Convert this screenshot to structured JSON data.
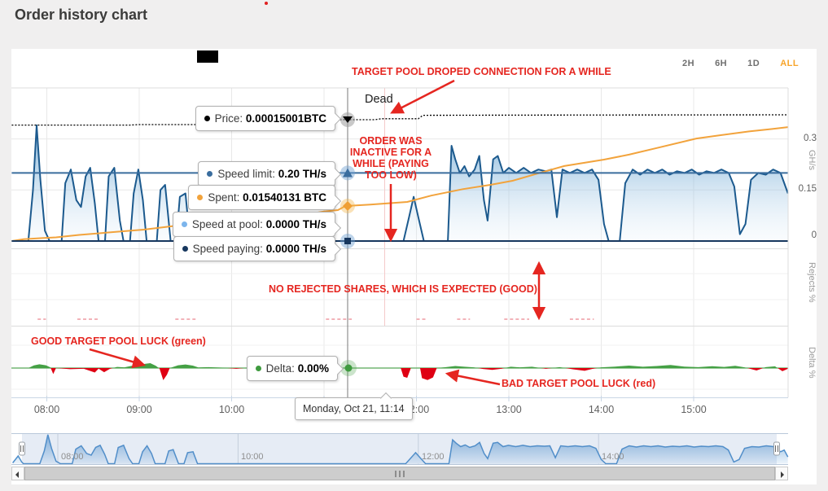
{
  "page": {
    "title": "Order history chart"
  },
  "range_selector": {
    "options": [
      "2H",
      "6H",
      "1D",
      "ALL"
    ],
    "active_index": 3
  },
  "series_tooltips": [
    {
      "id": "price",
      "label": "Price:",
      "value": "0.00015001BTC",
      "color": "#000000"
    },
    {
      "id": "speed_limit",
      "label": "Speed limit:",
      "value": "0.20 TH/s",
      "color": "#3a6d9e"
    },
    {
      "id": "spent",
      "label": "Spent:",
      "value": "0.01540131 BTC",
      "color": "#f2a33c"
    },
    {
      "id": "speed_at_pool",
      "label": "Speed at pool:",
      "value": "0.0000 TH/s",
      "color": "#7cb5ec"
    },
    {
      "id": "speed_paying",
      "label": "Speed paying:",
      "value": "0.0000 TH/s",
      "color": "#17375e"
    },
    {
      "id": "delta",
      "label": "Delta:",
      "value": "0.00%",
      "color": "#3f9b3f"
    }
  ],
  "date_tooltip": "Monday, Oct 21, 11:14",
  "annotations": {
    "dead": "Dead",
    "target_pool_dropped": "TARGET POOL DROPED CONNECTION FOR A WHILE",
    "order_inactive": "ORDER WAS INACTIVE FOR A WHILE (PAYING TOO LOW)",
    "no_rejected": "NO REJECTED SHARES, WHICH IS EXPECTED (GOOD)",
    "good_luck": "GOOD TARGET POOL LUCK (green)",
    "bad_luck": "BAD TARGET POOL LUCK (red)",
    "color": "#e52620"
  },
  "x_axis": {
    "labels": [
      "08:00",
      "09:00",
      "10:00",
      "11:00",
      "12:00",
      "13:00",
      "14:00",
      "15:00"
    ]
  },
  "y_axis": {
    "speed": {
      "title": "GH/s",
      "labels": [
        "0.3",
        "0.15",
        "0"
      ]
    },
    "rejects": {
      "title": "Rejects %"
    },
    "delta": {
      "title": "Delta %"
    }
  },
  "navigator": {
    "labels": [
      "08:00",
      "10:00",
      "12:00",
      "14:00"
    ]
  },
  "chart_data": {
    "type": "area",
    "x_unit": "hour_of_day",
    "x_range": [
      7.62,
      16.02
    ],
    "panes": [
      {
        "name": "speed",
        "ylabel": "GH/s",
        "ylim": [
          0,
          0.45
        ],
        "gridlines": [
          0.15,
          0.3
        ]
      },
      {
        "name": "rejects",
        "ylabel": "Rejects %"
      },
      {
        "name": "delta",
        "ylabel": "Delta %"
      }
    ],
    "crosshair": {
      "label": "Monday, Oct 21, 11:14",
      "t": 11.233,
      "values": {
        "price_btc": 0.00015001,
        "speed_limit_ths": 0.2,
        "spent_btc": 0.01540131,
        "speed_at_pool_ths": 0.0,
        "speed_paying_ths": 0.0,
        "delta_pct": 0.0
      }
    },
    "series": [
      {
        "name": "Price",
        "unit": "BTC",
        "color": "#000000",
        "style": "dashed",
        "points": [
          [
            7.62,
            0.0001478
          ],
          [
            8.9,
            0.0001478
          ],
          [
            9.0,
            0.000148
          ],
          [
            9.9,
            0.000148
          ],
          [
            10.0,
            0.0001482
          ],
          [
            10.6,
            0.0001483
          ],
          [
            11.0,
            0.0001485
          ],
          [
            11.1,
            0.00015001
          ],
          [
            11.55,
            0.00015001
          ],
          [
            11.62,
            0.0001504
          ],
          [
            12.02,
            0.0001504
          ],
          [
            12.07,
            0.0001518
          ],
          [
            13.5,
            0.0001519
          ],
          [
            16.02,
            0.000152
          ]
        ]
      },
      {
        "name": "Speed limit",
        "unit": "TH/s",
        "color": "#3a6d9e",
        "points": [
          [
            7.62,
            0.2
          ],
          [
            16.02,
            0.2
          ]
        ]
      },
      {
        "name": "Spent",
        "unit": "BTC",
        "color": "#f2a33c",
        "points": [
          [
            7.62,
            0
          ],
          [
            7.75,
            0.0008
          ],
          [
            7.95,
            0.0013
          ],
          [
            8.1,
            0.0016
          ],
          [
            8.35,
            0.0027
          ],
          [
            8.8,
            0.0042
          ],
          [
            9.05,
            0.005
          ],
          [
            9.45,
            0.007
          ],
          [
            9.85,
            0.009
          ],
          [
            10.1,
            0.0096
          ],
          [
            10.4,
            0.01
          ],
          [
            10.7,
            0.011
          ],
          [
            11.0,
            0.013
          ],
          [
            11.15,
            0.0136
          ],
          [
            11.233,
            0.01540131
          ],
          [
            11.5,
            0.016
          ],
          [
            11.9,
            0.0172
          ],
          [
            12.16,
            0.02
          ],
          [
            12.5,
            0.0228
          ],
          [
            12.8,
            0.0247
          ],
          [
            13.04,
            0.0265
          ],
          [
            13.3,
            0.0296
          ],
          [
            13.6,
            0.033
          ],
          [
            14.03,
            0.0358
          ],
          [
            14.3,
            0.038
          ],
          [
            14.6,
            0.0409
          ],
          [
            15.03,
            0.0451
          ],
          [
            15.3,
            0.0466
          ],
          [
            15.6,
            0.0482
          ],
          [
            15.85,
            0.0493
          ],
          [
            16.02,
            0.0501
          ]
        ]
      },
      {
        "name": "Speed at pool",
        "unit": "TH/s",
        "type": "area",
        "color": "#1c5a8e",
        "points": [
          [
            7.62,
            0
          ],
          [
            7.8,
            0
          ],
          [
            7.85,
            0.15
          ],
          [
            7.89,
            0.34
          ],
          [
            7.93,
            0.18
          ],
          [
            7.98,
            0.03
          ],
          [
            8.03,
            0
          ],
          [
            8.16,
            0
          ],
          [
            8.2,
            0.17
          ],
          [
            8.26,
            0.21
          ],
          [
            8.32,
            0.12
          ],
          [
            8.37,
            0.1
          ],
          [
            8.42,
            0.19
          ],
          [
            8.47,
            0.215
          ],
          [
            8.52,
            0.11
          ],
          [
            8.56,
            0
          ],
          [
            8.63,
            0
          ],
          [
            8.67,
            0.19
          ],
          [
            8.73,
            0.215
          ],
          [
            8.79,
            0.06
          ],
          [
            8.83,
            0
          ],
          [
            8.9,
            0
          ],
          [
            8.94,
            0.14
          ],
          [
            8.99,
            0.21
          ],
          [
            9.04,
            0.12
          ],
          [
            9.08,
            0
          ],
          [
            9.19,
            0
          ],
          [
            9.23,
            0.15
          ],
          [
            9.28,
            0.165
          ],
          [
            9.34,
            0
          ],
          [
            9.4,
            0
          ],
          [
            9.44,
            0.13
          ],
          [
            9.5,
            0.14
          ],
          [
            9.55,
            0
          ],
          [
            9.6,
            0
          ],
          [
            11.8,
            0
          ],
          [
            11.86,
            0
          ],
          [
            11.92,
            0.07
          ],
          [
            11.97,
            0.13
          ],
          [
            12.02,
            0.07
          ],
          [
            12.08,
            0
          ],
          [
            12.3,
            0
          ],
          [
            12.34,
            0
          ],
          [
            12.38,
            0.28
          ],
          [
            12.42,
            0.24
          ],
          [
            12.47,
            0.2
          ],
          [
            12.52,
            0.22
          ],
          [
            12.57,
            0.19
          ],
          [
            12.63,
            0.21
          ],
          [
            12.68,
            0.25
          ],
          [
            12.73,
            0.12
          ],
          [
            12.77,
            0.06
          ],
          [
            12.83,
            0.24
          ],
          [
            12.88,
            0.25
          ],
          [
            12.94,
            0.2
          ],
          [
            13.0,
            0.215
          ],
          [
            13.08,
            0.2
          ],
          [
            13.16,
            0.215
          ],
          [
            13.24,
            0.2
          ],
          [
            13.32,
            0.21
          ],
          [
            13.4,
            0.205
          ],
          [
            13.46,
            0.21
          ],
          [
            13.52,
            0.07
          ],
          [
            13.58,
            0.21
          ],
          [
            13.66,
            0.2
          ],
          [
            13.74,
            0.21
          ],
          [
            13.82,
            0.2
          ],
          [
            13.9,
            0.21
          ],
          [
            13.97,
            0.18
          ],
          [
            14.03,
            0.05
          ],
          [
            14.08,
            0
          ],
          [
            14.2,
            0
          ],
          [
            14.26,
            0.17
          ],
          [
            14.34,
            0.21
          ],
          [
            14.42,
            0.195
          ],
          [
            14.5,
            0.21
          ],
          [
            14.58,
            0.2
          ],
          [
            14.66,
            0.21
          ],
          [
            14.74,
            0.195
          ],
          [
            14.82,
            0.205
          ],
          [
            14.9,
            0.2
          ],
          [
            14.98,
            0.21
          ],
          [
            15.06,
            0.195
          ],
          [
            15.14,
            0.205
          ],
          [
            15.22,
            0.2
          ],
          [
            15.3,
            0.21
          ],
          [
            15.38,
            0.2
          ],
          [
            15.44,
            0.16
          ],
          [
            15.5,
            0.02
          ],
          [
            15.56,
            0.05
          ],
          [
            15.62,
            0.18
          ],
          [
            15.7,
            0.2
          ],
          [
            15.78,
            0.195
          ],
          [
            15.86,
            0.21
          ],
          [
            15.94,
            0.2
          ],
          [
            16.02,
            0.14
          ]
        ]
      },
      {
        "name": "Speed paying",
        "unit": "TH/s",
        "color": "#17375e",
        "points": [
          [
            7.62,
            0
          ],
          [
            16.02,
            0
          ]
        ]
      },
      {
        "name": "Rejects",
        "unit": "%",
        "color": "#f2b3b9",
        "zero_segments": [
          [
            7.9,
            7.99
          ],
          [
            8.33,
            8.56
          ],
          [
            9.39,
            9.61
          ],
          [
            11.02,
            11.3
          ],
          [
            12.0,
            12.12
          ],
          [
            12.44,
            12.58
          ],
          [
            12.95,
            13.22
          ],
          [
            13.66,
            13.92
          ]
        ]
      },
      {
        "name": "Delta",
        "unit": "%",
        "pos_color": "#44a044",
        "neg_color": "#df0013",
        "points": [
          [
            7.62,
            0
          ],
          [
            7.8,
            0
          ],
          [
            7.86,
            1.4
          ],
          [
            7.92,
            2.0
          ],
          [
            7.99,
            1.5
          ],
          [
            8.04,
            0.3
          ],
          [
            8.07,
            -3.2
          ],
          [
            8.1,
            0
          ],
          [
            8.25,
            -0.6
          ],
          [
            8.4,
            -0.4
          ],
          [
            8.52,
            -2.4
          ],
          [
            8.56,
            -0.3
          ],
          [
            8.62,
            -2.2
          ],
          [
            8.68,
            -0.5
          ],
          [
            8.76,
            0.6
          ],
          [
            8.84,
            0.4
          ],
          [
            8.92,
            1.2
          ],
          [
            9.0,
            1.0
          ],
          [
            9.06,
            2.2
          ],
          [
            9.12,
            2.6
          ],
          [
            9.18,
            1.2
          ],
          [
            9.22,
            -0.3
          ],
          [
            9.26,
            -6.5
          ],
          [
            9.3,
            -3.5
          ],
          [
            9.33,
            0
          ],
          [
            9.42,
            1.5
          ],
          [
            9.5,
            1.9
          ],
          [
            9.58,
            1.3
          ],
          [
            9.64,
            0.3
          ],
          [
            9.75,
            0.5
          ],
          [
            9.9,
            0.2
          ],
          [
            10.05,
            -0.4
          ],
          [
            10.2,
            0.3
          ],
          [
            10.4,
            -0.3
          ],
          [
            10.6,
            0.2
          ],
          [
            10.8,
            0
          ],
          [
            11.0,
            0
          ],
          [
            11.233,
            0
          ],
          [
            11.5,
            0
          ],
          [
            11.7,
            0
          ],
          [
            11.83,
            0
          ],
          [
            11.86,
            -4.6
          ],
          [
            11.9,
            -5.2
          ],
          [
            11.94,
            0
          ],
          [
            12.04,
            0
          ],
          [
            12.06,
            -5.4
          ],
          [
            12.12,
            -6.4
          ],
          [
            12.18,
            -5.0
          ],
          [
            12.22,
            0
          ],
          [
            12.32,
            0.5
          ],
          [
            12.42,
            1.1
          ],
          [
            12.52,
            0.7
          ],
          [
            12.62,
            0.4
          ],
          [
            12.72,
            -0.5
          ],
          [
            12.82,
            -1.0
          ],
          [
            12.92,
            -0.4
          ],
          [
            13.02,
            0.7
          ],
          [
            13.12,
            0.4
          ],
          [
            13.25,
            0.7
          ],
          [
            13.4,
            -0.4
          ],
          [
            13.55,
            0.5
          ],
          [
            13.7,
            -0.7
          ],
          [
            13.82,
            -1.5
          ],
          [
            13.9,
            -0.5
          ],
          [
            14.0,
            0.4
          ],
          [
            14.15,
            0.8
          ],
          [
            14.3,
            1.3
          ],
          [
            14.45,
            0.7
          ],
          [
            14.6,
            1.1
          ],
          [
            14.75,
            1.6
          ],
          [
            14.9,
            0.8
          ],
          [
            15.05,
            0.5
          ],
          [
            15.2,
            1.0
          ],
          [
            15.33,
            0.6
          ],
          [
            15.45,
            1.2
          ],
          [
            15.55,
            0.4
          ],
          [
            15.68,
            -1.3
          ],
          [
            15.78,
            0.5
          ],
          [
            15.88,
            0.9
          ],
          [
            15.96,
            -1.7
          ],
          [
            16.02,
            -0.4
          ]
        ]
      }
    ],
    "navigator_lead_in": [
      [
        7.5,
        0.01
      ],
      [
        7.56,
        0.09
      ],
      [
        7.6,
        0.02
      ]
    ],
    "navigator_tail": [
      [
        16.06,
        0.16
      ],
      [
        16.1,
        0.08
      ]
    ]
  }
}
